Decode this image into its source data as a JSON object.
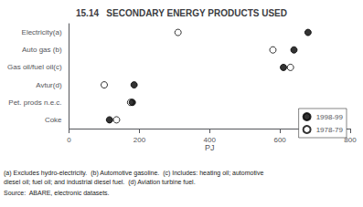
{
  "chart_data": {
    "type": "scatter",
    "title": "15.14   SECONDARY ENERGY PRODUCTS USED",
    "categories": [
      "Electricity(a)",
      "Auto gas (b)",
      "Gas oil/fuel oil(c)",
      "Avtur(d)",
      "Pet. prods n.e.c.",
      "Coke"
    ],
    "series": [
      {
        "name": "1998-99",
        "color": "black",
        "marker": "circle",
        "values": [
          680,
          640,
          610,
          185,
          180,
          115
        ]
      },
      {
        "name": "1978-79",
        "color": "black",
        "marker": "open_circle",
        "values": [
          310,
          580,
          630,
          100,
          175,
          135
        ]
      }
    ],
    "orientation": "horizontal",
    "xlabel": "PJ",
    "xlim": [
      0,
      800
    ],
    "xticks": [
      0,
      200,
      400,
      600,
      800
    ],
    "grid": false,
    "legend": "lower right",
    "annotations": [
      "(a) Excludes hydro-electricity.  (b) Automotive gasoline.  (c) Includes: heating oil; automotive",
      "diesel oil; fuel oil; and industrial diesel fuel.  (d) Aviation turbine fuel.",
      "Source:  ABARE, electronic datasets."
    ]
  }
}
